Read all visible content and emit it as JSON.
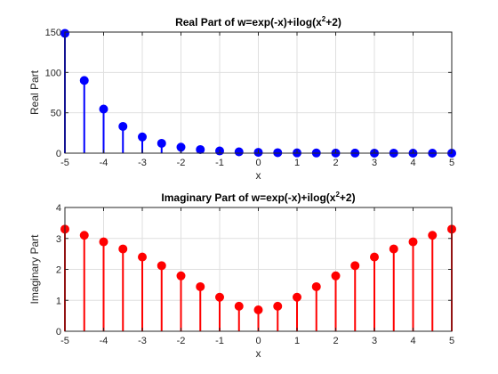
{
  "chart_data": [
    {
      "type": "stem",
      "title": {
        "prefix": "Real Part of w=exp(-x)+ilog(x",
        "sup": "2",
        "suffix": "+2)"
      },
      "xlabel": "x",
      "ylabel": "Real Part",
      "xlim": [
        -5,
        5
      ],
      "ylim": [
        0,
        150
      ],
      "xticks": [
        "-5",
        "-4",
        "-3",
        "-2",
        "-1",
        "0",
        "1",
        "2",
        "3",
        "4",
        "5"
      ],
      "yticks": [
        "0",
        "50",
        "100",
        "150"
      ],
      "grid": true,
      "color": "#0000ff",
      "x": [
        -5,
        -4.5,
        -4,
        -3.5,
        -3,
        -2.5,
        -2,
        -1.5,
        -1,
        -0.5,
        0,
        0.5,
        1,
        1.5,
        2,
        2.5,
        3,
        3.5,
        4,
        4.5,
        5
      ],
      "y": [
        148.41,
        90.02,
        54.6,
        33.12,
        20.09,
        12.18,
        7.39,
        4.48,
        2.72,
        1.65,
        1.0,
        0.61,
        0.37,
        0.22,
        0.14,
        0.08,
        0.05,
        0.03,
        0.02,
        0.01,
        0.01
      ]
    },
    {
      "type": "stem",
      "title": {
        "prefix": "Imaginary Part of w=exp(-x)+ilog(x",
        "sup": "2",
        "suffix": "+2)"
      },
      "xlabel": "x",
      "ylabel": "Imaginary Part",
      "xlim": [
        -5,
        5
      ],
      "ylim": [
        0,
        4
      ],
      "xticks": [
        "-5",
        "-4",
        "-3",
        "-2",
        "-1",
        "0",
        "1",
        "2",
        "3",
        "4",
        "5"
      ],
      "yticks": [
        "0",
        "1",
        "2",
        "3",
        "4"
      ],
      "grid": true,
      "color": "#ff0000",
      "x": [
        -5,
        -4.5,
        -4,
        -3.5,
        -3,
        -2.5,
        -2,
        -1.5,
        -1,
        -0.5,
        0,
        0.5,
        1,
        1.5,
        2,
        2.5,
        3,
        3.5,
        4,
        4.5,
        5
      ],
      "y": [
        3.3,
        3.1,
        2.89,
        2.66,
        2.4,
        2.12,
        1.79,
        1.44,
        1.1,
        0.81,
        0.69,
        0.81,
        1.1,
        1.44,
        1.79,
        2.12,
        2.4,
        2.66,
        2.89,
        3.1,
        3.3
      ]
    }
  ]
}
